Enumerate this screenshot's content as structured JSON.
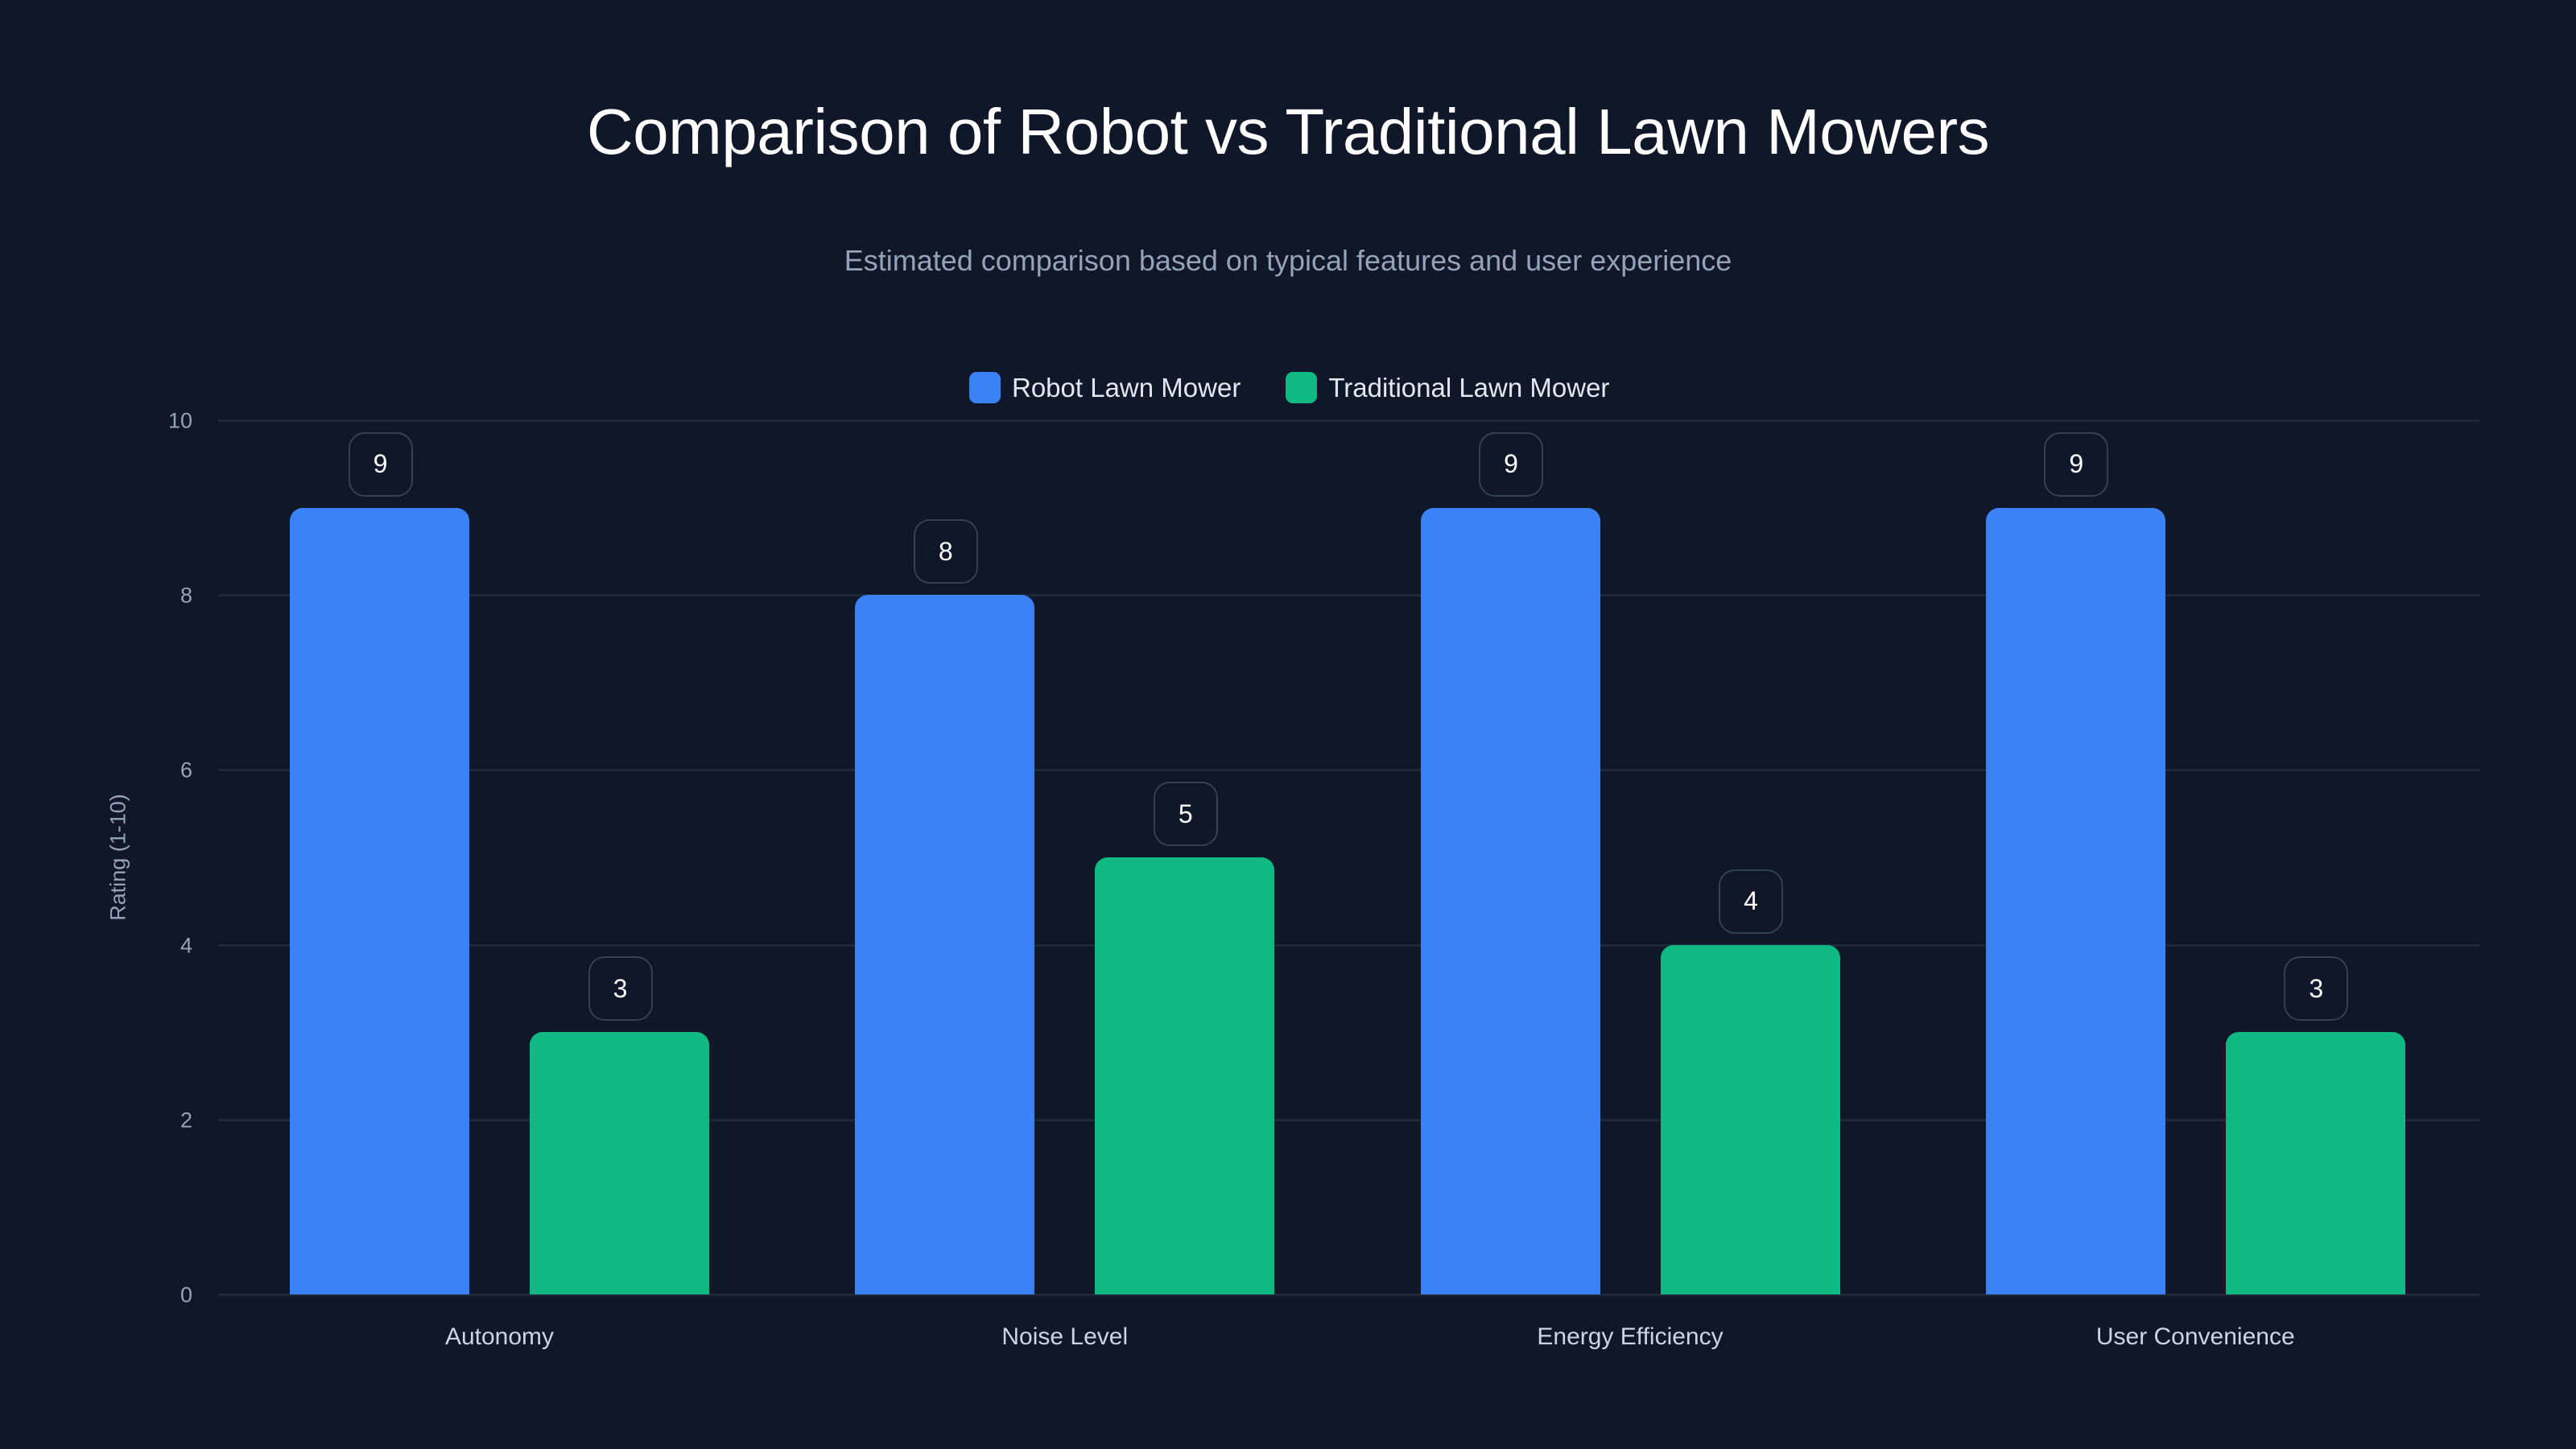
{
  "header": {
    "title": "Comparison of Robot vs Traditional Lawn Mowers",
    "subtitle": "Estimated comparison based on typical features and user experience"
  },
  "legend": [
    {
      "label": "Robot Lawn Mower",
      "color": "#3b82f6"
    },
    {
      "label": "Traditional Lawn Mower",
      "color": "#10b981"
    }
  ],
  "axes": {
    "ylabel": "Rating (1-10)",
    "yticks": [
      "0",
      "2",
      "4",
      "6",
      "8",
      "10"
    ]
  },
  "chart_data": {
    "type": "bar",
    "title": "Comparison of Robot vs Traditional Lawn Mowers",
    "subtitle": "Estimated comparison based on typical features and user experience",
    "categories": [
      "Autonomy",
      "Noise Level",
      "Energy Efficiency",
      "User Convenience"
    ],
    "series": [
      {
        "name": "Robot Lawn Mower",
        "color": "#3b82f6",
        "values": [
          9,
          8,
          9,
          9
        ]
      },
      {
        "name": "Traditional Lawn Mower",
        "color": "#10b981",
        "values": [
          3,
          5,
          4,
          3
        ]
      }
    ],
    "xlabel": "",
    "ylabel": "Rating (1-10)",
    "ylim": [
      0,
      10
    ],
    "yticks": [
      0,
      2,
      4,
      6,
      8,
      10
    ],
    "grid": true,
    "legend_position": "top",
    "data_labels": true
  },
  "colors": {
    "background": "#0f1729",
    "gridline": "#1e293b",
    "label_border": "#334155"
  }
}
